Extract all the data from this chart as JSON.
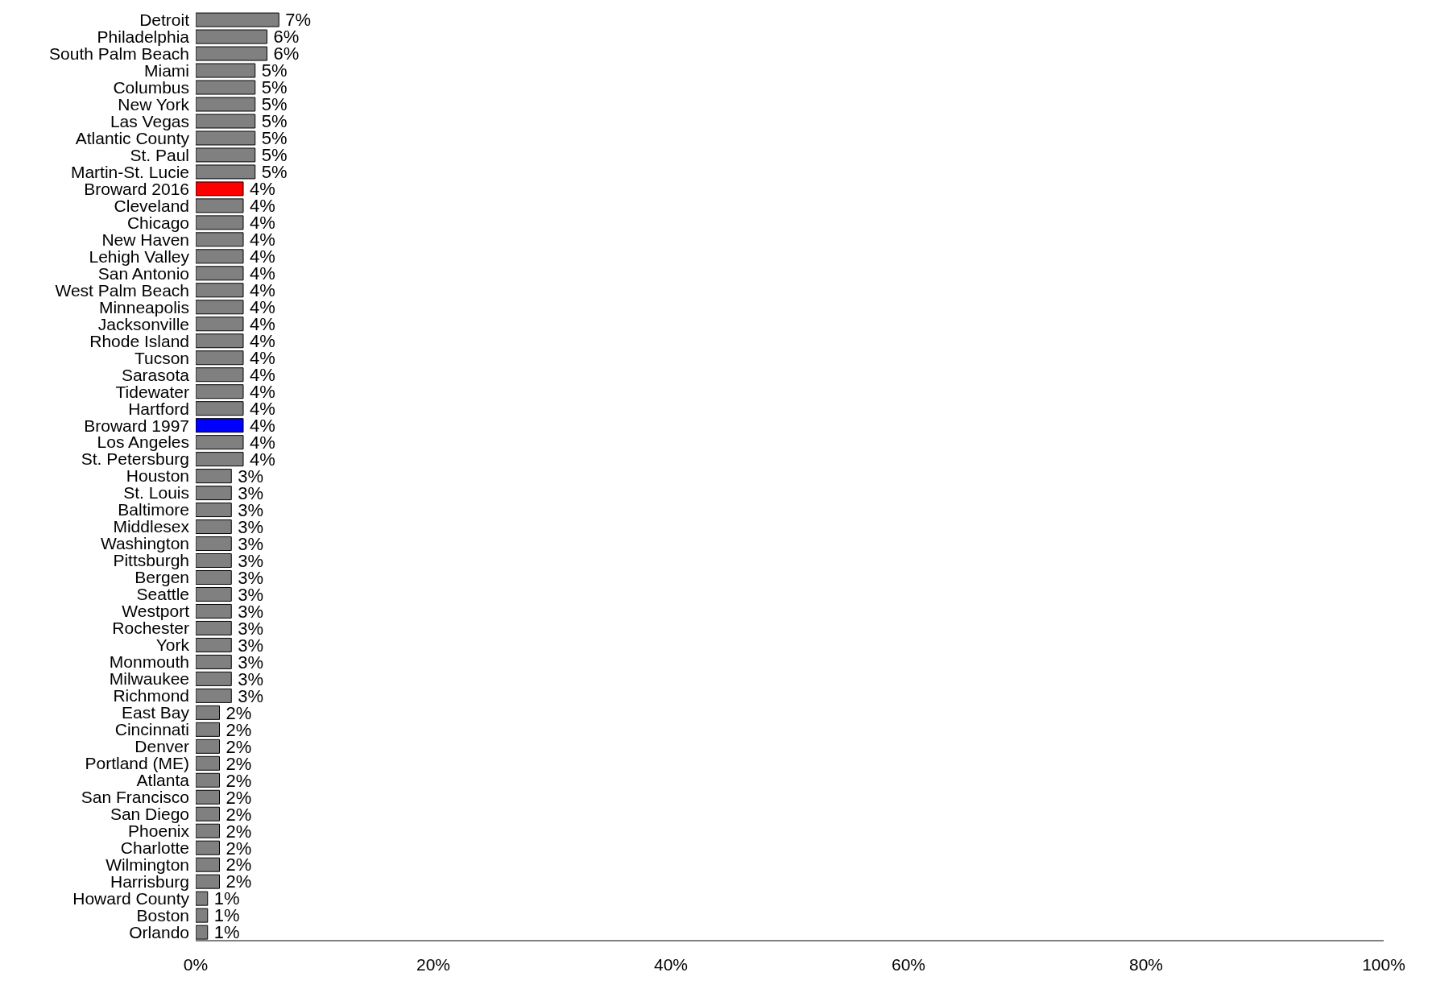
{
  "chart_data": {
    "type": "bar",
    "orientation": "horizontal",
    "categories": [
      "Detroit",
      "Philadelphia",
      "South Palm Beach",
      "Miami",
      "Columbus",
      "New York",
      "Las Vegas",
      "Atlantic County",
      "St. Paul",
      "Martin-St. Lucie",
      "Broward 2016",
      "Cleveland",
      "Chicago",
      "New Haven",
      "Lehigh Valley",
      "San Antonio",
      "West Palm Beach",
      "Minneapolis",
      "Jacksonville",
      "Rhode Island",
      "Tucson",
      "Sarasota",
      "Tidewater",
      "Hartford",
      "Broward 1997",
      "Los Angeles",
      "St. Petersburg",
      "Houston",
      "St. Louis",
      "Baltimore",
      "Middlesex",
      "Washington",
      "Pittsburgh",
      "Bergen",
      "Seattle",
      "Westport",
      "Rochester",
      "York",
      "Monmouth",
      "Milwaukee",
      "Richmond",
      "East Bay",
      "Cincinnati",
      "Denver",
      "Portland (ME)",
      "Atlanta",
      "San Francisco",
      "San Diego",
      "Phoenix",
      "Charlotte",
      "Wilmington",
      "Harrisburg",
      "Howard County",
      "Boston",
      "Orlando"
    ],
    "values": [
      7,
      6,
      6,
      5,
      5,
      5,
      5,
      5,
      5,
      5,
      4,
      4,
      4,
      4,
      4,
      4,
      4,
      4,
      4,
      4,
      4,
      4,
      4,
      4,
      4,
      4,
      4,
      3,
      3,
      3,
      3,
      3,
      3,
      3,
      3,
      3,
      3,
      3,
      3,
      3,
      3,
      2,
      2,
      2,
      2,
      2,
      2,
      2,
      2,
      2,
      2,
      2,
      1,
      1,
      1
    ],
    "value_labels": [
      "7%",
      "6%",
      "6%",
      "5%",
      "5%",
      "5%",
      "5%",
      "5%",
      "5%",
      "5%",
      "4%",
      "4%",
      "4%",
      "4%",
      "4%",
      "4%",
      "4%",
      "4%",
      "4%",
      "4%",
      "4%",
      "4%",
      "4%",
      "4%",
      "4%",
      "4%",
      "4%",
      "3%",
      "3%",
      "3%",
      "3%",
      "3%",
      "3%",
      "3%",
      "3%",
      "3%",
      "3%",
      "3%",
      "3%",
      "3%",
      "3%",
      "2%",
      "2%",
      "2%",
      "2%",
      "2%",
      "2%",
      "2%",
      "2%",
      "2%",
      "2%",
      "2%",
      "1%",
      "1%",
      "1%"
    ],
    "colors": [
      "#808080",
      "#808080",
      "#808080",
      "#808080",
      "#808080",
      "#808080",
      "#808080",
      "#808080",
      "#808080",
      "#808080",
      "#ff0000",
      "#808080",
      "#808080",
      "#808080",
      "#808080",
      "#808080",
      "#808080",
      "#808080",
      "#808080",
      "#808080",
      "#808080",
      "#808080",
      "#808080",
      "#808080",
      "#0000ff",
      "#808080",
      "#808080",
      "#808080",
      "#808080",
      "#808080",
      "#808080",
      "#808080",
      "#808080",
      "#808080",
      "#808080",
      "#808080",
      "#808080",
      "#808080",
      "#808080",
      "#808080",
      "#808080",
      "#808080",
      "#808080",
      "#808080",
      "#808080",
      "#808080",
      "#808080",
      "#808080",
      "#808080",
      "#808080",
      "#808080",
      "#808080",
      "#808080",
      "#808080",
      "#808080"
    ],
    "xlim": [
      0,
      100
    ],
    "xticks": [
      {
        "value": 0,
        "label": "0%"
      },
      {
        "value": 20,
        "label": "20%"
      },
      {
        "value": 40,
        "label": "40%"
      },
      {
        "value": 60,
        "label": "60%"
      },
      {
        "value": 80,
        "label": "80%"
      },
      {
        "value": 100,
        "label": "100%"
      }
    ],
    "grid": false
  }
}
